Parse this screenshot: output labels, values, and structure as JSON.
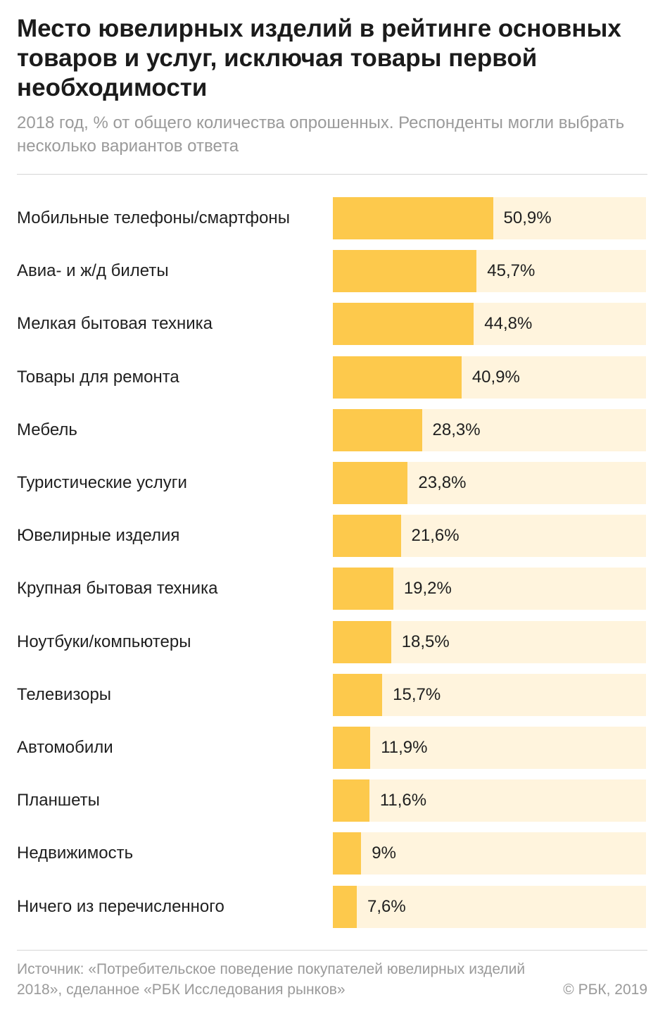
{
  "title": "Место ювелирных изделий в рейтинге основных товаров и услуг, исключая товары первой необходимости",
  "subtitle": "2018 год, % от общего количества опрошенных. Респонденты могли выбрать несколько вариантов ответа",
  "footer": {
    "source": "Источник:  «Потребительское поведение покупателей ювелирных изделий 2018», сделанное «РБК Исследования рынков»",
    "copyright": "© РБК, 2019"
  },
  "colors": {
    "bar_fill": "#fdc94c",
    "bar_track": "#fff4dd"
  },
  "chart_data": {
    "type": "bar",
    "orientation": "horizontal",
    "title": "Место ювелирных изделий в рейтинге основных товаров и услуг, исключая товары первой необходимости",
    "xlim": [
      0,
      100
    ],
    "grid": false,
    "categories": [
      "Мобильные телефоны/смартфоны",
      "Авиа- и ж/д билеты",
      "Мелкая бытовая техника",
      "Товары для ремонта",
      "Мебель",
      "Туристические услуги",
      "Ювелирные изделия",
      "Крупная бытовая техника",
      "Ноутбуки/компьютеры",
      "Телевизоры",
      "Автомобили",
      "Планшеты",
      "Недвижимость",
      "Ничего из перечисленного"
    ],
    "values": [
      50.9,
      45.7,
      44.8,
      40.9,
      28.3,
      23.8,
      21.6,
      19.2,
      18.5,
      15.7,
      11.9,
      11.6,
      9,
      7.6
    ],
    "value_labels": [
      "50,9%",
      "45,7%",
      "44,8%",
      "40,9%",
      "28,3%",
      "23,8%",
      "21,6%",
      "19,2%",
      "18,5%",
      "15,7%",
      "11,9%",
      "11,6%",
      "9%",
      "7,6%"
    ]
  }
}
